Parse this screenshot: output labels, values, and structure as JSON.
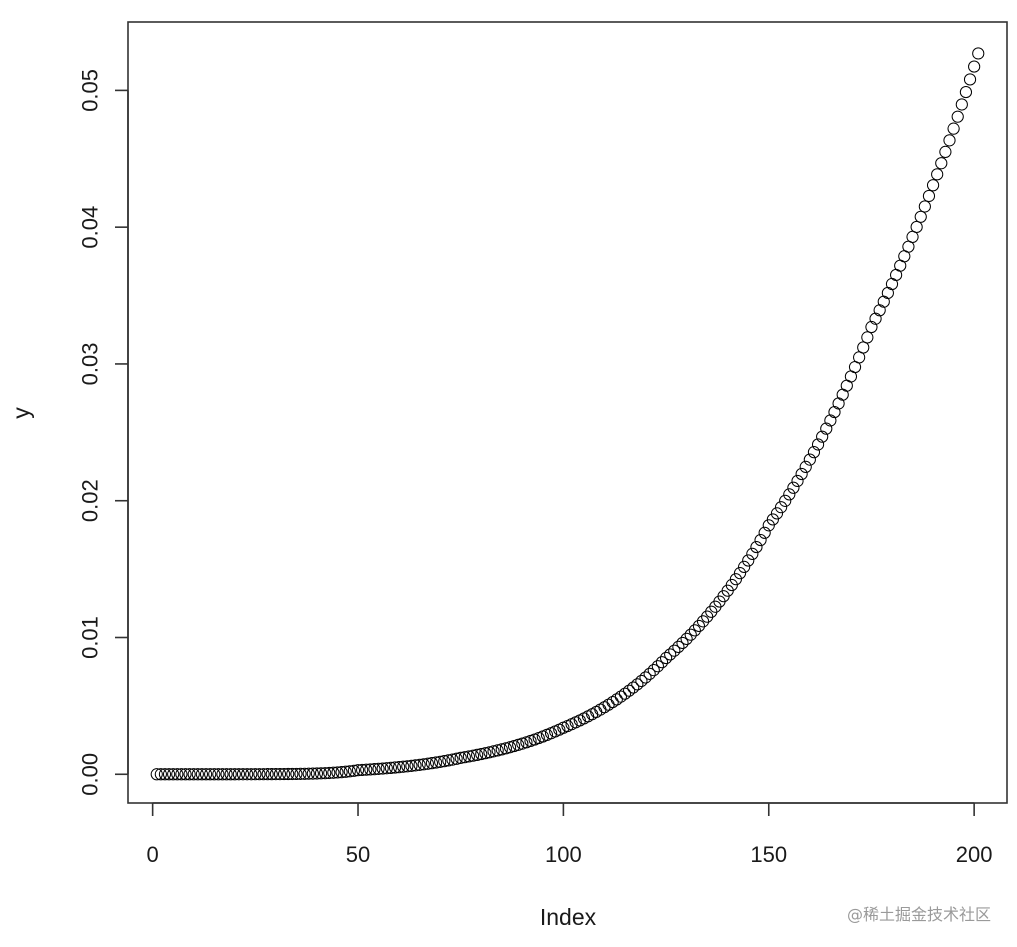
{
  "chart_data": {
    "type": "scatter",
    "marker": "open-circle",
    "xlabel": "Index",
    "ylabel": "y",
    "x_range": [
      1,
      201
    ],
    "xlim": [
      -6,
      208
    ],
    "ylim": [
      -0.0021,
      0.055
    ],
    "x_ticks": [
      0,
      50,
      100,
      150,
      200
    ],
    "x_tick_labels": [
      "0",
      "50",
      "100",
      "150",
      "200"
    ],
    "y_ticks": [
      0.0,
      0.01,
      0.02,
      0.03,
      0.04,
      0.05
    ],
    "y_tick_labels": [
      "0.00",
      "0.01",
      "0.02",
      "0.03",
      "0.04",
      "0.05"
    ],
    "sample_points": [
      {
        "x": 1,
        "y": 0.0
      },
      {
        "x": 50,
        "y": 0.0003
      },
      {
        "x": 75,
        "y": 0.0012
      },
      {
        "x": 100,
        "y": 0.0034
      },
      {
        "x": 125,
        "y": 0.0085
      },
      {
        "x": 150,
        "y": 0.0182
      },
      {
        "x": 175,
        "y": 0.0327
      },
      {
        "x": 201,
        "y": 0.0527
      }
    ],
    "grid": false,
    "colors": {
      "marker": "#000000",
      "axis": "#333333",
      "background": "#ffffff"
    }
  },
  "watermark": "@稀土掘金技术社区"
}
